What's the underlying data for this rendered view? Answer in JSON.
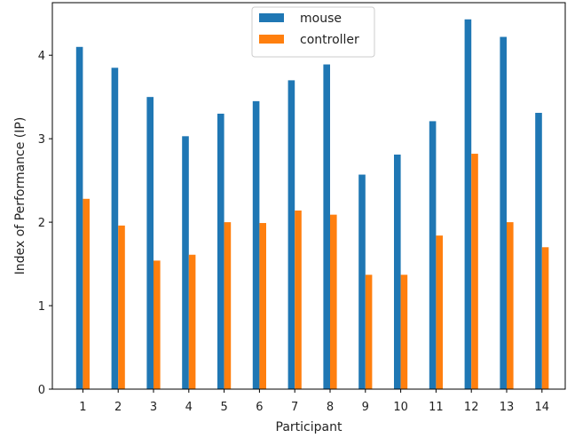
{
  "chart_data": {
    "type": "bar",
    "title": "",
    "xlabel": "Participant",
    "ylabel": "Index of Performance (IP)",
    "categories": [
      "1",
      "2",
      "3",
      "4",
      "5",
      "6",
      "7",
      "8",
      "9",
      "10",
      "11",
      "12",
      "13",
      "14"
    ],
    "ylim": [
      0,
      4.63
    ],
    "yticks": [
      0,
      1,
      2,
      3,
      4
    ],
    "grid": false,
    "legend_position": "top-center",
    "series": [
      {
        "name": "mouse",
        "color": "#1f77b4",
        "values": [
          4.1,
          3.85,
          3.5,
          3.03,
          3.3,
          3.45,
          3.7,
          3.89,
          2.57,
          2.81,
          3.21,
          4.43,
          4.22,
          3.31
        ]
      },
      {
        "name": "controller",
        "color": "#ff7f0e",
        "values": [
          2.28,
          1.96,
          1.54,
          1.61,
          2.0,
          1.99,
          2.14,
          2.09,
          1.37,
          1.37,
          1.84,
          2.82,
          2.0,
          1.7
        ]
      }
    ]
  }
}
